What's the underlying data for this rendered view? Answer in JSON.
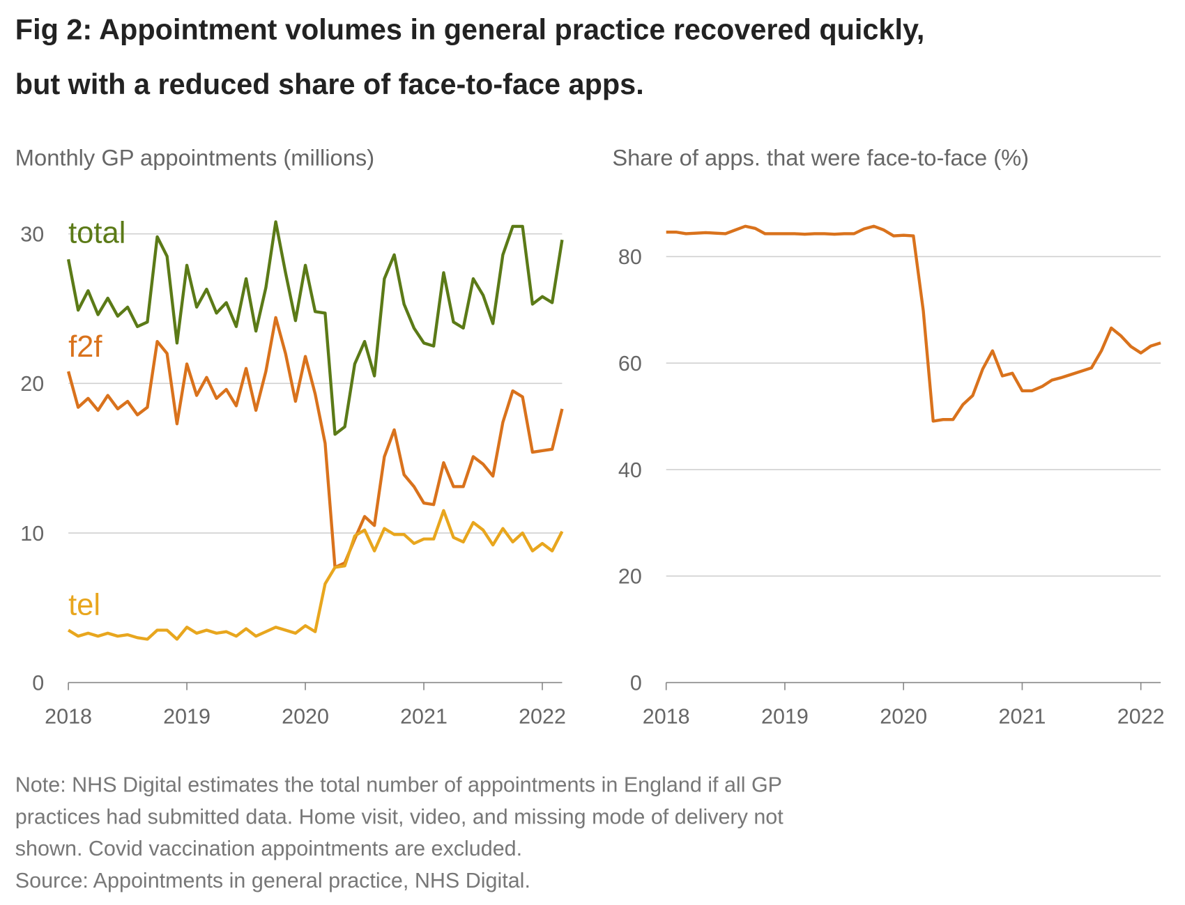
{
  "title": [
    "Fig 2: Appointment volumes in general practice recovered quickly,",
    "but with a reduced share of face-to-face apps."
  ],
  "notes": [
    "Note: NHS Digital estimates the total number of appointments in England if all GP",
    "practices had submitted data. Home visit, video, and missing mode of delivery not",
    "shown. Covid vaccination appointments are excluded.",
    "Source: Appointments in general practice, NHS Digital."
  ],
  "chart_data": [
    {
      "type": "line",
      "subtitle": "Monthly GP appointments (millions)",
      "x": [
        2018,
        2018.083,
        2018.167,
        2018.25,
        2018.333,
        2018.417,
        2018.5,
        2018.583,
        2018.667,
        2018.75,
        2018.833,
        2018.917,
        2019,
        2019.083,
        2019.167,
        2019.25,
        2019.333,
        2019.417,
        2019.5,
        2019.583,
        2019.667,
        2019.75,
        2019.833,
        2019.917,
        2020,
        2020.083,
        2020.167,
        2020.25,
        2020.333,
        2020.417,
        2020.5,
        2020.583,
        2020.667,
        2020.75,
        2020.833,
        2020.917,
        2021,
        2021.083,
        2021.167,
        2021.25,
        2021.333,
        2021.417,
        2021.5,
        2021.583,
        2021.667,
        2021.75,
        2021.833,
        2021.917,
        2022,
        2022.083,
        2022.167
      ],
      "series": [
        {
          "name": "total",
          "color": "#5b7a17",
          "values": [
            28.3,
            24.9,
            26.2,
            24.6,
            25.7,
            24.5,
            25.1,
            23.8,
            24.1,
            29.8,
            28.5,
            22.7,
            27.9,
            25.1,
            26.3,
            24.7,
            25.4,
            23.8,
            27.0,
            23.5,
            26.4,
            30.8,
            27.4,
            24.2,
            27.9,
            24.8,
            24.7,
            16.6,
            17.1,
            21.3,
            22.8,
            20.5,
            27.0,
            28.6,
            25.3,
            23.7,
            22.7,
            22.5,
            27.4,
            24.1,
            23.7,
            27.0,
            25.9,
            24.0,
            28.6,
            30.5,
            30.5,
            25.3,
            25.8,
            25.4,
            29.6
          ]
        },
        {
          "name": "f2f",
          "color": "#d9721c",
          "values": [
            20.8,
            18.4,
            19.0,
            18.2,
            19.2,
            18.3,
            18.8,
            17.9,
            18.4,
            22.8,
            22.0,
            17.3,
            21.3,
            19.2,
            20.4,
            19.0,
            19.6,
            18.5,
            21.0,
            18.2,
            20.8,
            24.4,
            22.0,
            18.8,
            21.8,
            19.3,
            16.0,
            7.7,
            8.0,
            9.6,
            11.1,
            10.5,
            15.1,
            16.9,
            13.9,
            13.1,
            12.0,
            11.9,
            14.7,
            13.1,
            13.1,
            15.1,
            14.6,
            13.8,
            17.4,
            19.5,
            19.1,
            15.4,
            15.5,
            15.6,
            18.3
          ]
        },
        {
          "name": "tel",
          "color": "#e8a61e",
          "values": [
            3.5,
            3.1,
            3.3,
            3.1,
            3.3,
            3.1,
            3.2,
            3.0,
            2.9,
            3.5,
            3.5,
            2.9,
            3.7,
            3.3,
            3.5,
            3.3,
            3.4,
            3.1,
            3.6,
            3.1,
            3.4,
            3.7,
            3.5,
            3.3,
            3.8,
            3.4,
            6.6,
            7.7,
            7.8,
            9.8,
            10.2,
            8.8,
            10.3,
            9.9,
            9.9,
            9.3,
            9.6,
            9.6,
            11.5,
            9.7,
            9.4,
            10.7,
            10.2,
            9.2,
            10.3,
            9.4,
            10.0,
            8.8,
            9.3,
            8.8,
            10.1
          ]
        }
      ],
      "xlim": [
        2018,
        2022.167
      ],
      "xticks": [
        2018,
        2019,
        2020,
        2021,
        2022
      ],
      "ylim": [
        0,
        30
      ],
      "yticks": [
        0,
        10,
        20,
        30
      ],
      "grid": true
    },
    {
      "type": "line",
      "subtitle": "Share of apps. that were face-to-face (%)",
      "x": [
        2018,
        2018.083,
        2018.167,
        2018.25,
        2018.333,
        2018.417,
        2018.5,
        2018.583,
        2018.667,
        2018.75,
        2018.833,
        2018.917,
        2019,
        2019.083,
        2019.167,
        2019.25,
        2019.333,
        2019.417,
        2019.5,
        2019.583,
        2019.667,
        2019.75,
        2019.833,
        2019.917,
        2020,
        2020.083,
        2020.167,
        2020.25,
        2020.333,
        2020.417,
        2020.5,
        2020.583,
        2020.667,
        2020.75,
        2020.833,
        2020.917,
        2021,
        2021.083,
        2021.167,
        2021.25,
        2021.333,
        2021.417,
        2021.5,
        2021.583,
        2021.667,
        2021.75,
        2021.833,
        2021.917,
        2022,
        2022.083,
        2022.167
      ],
      "series": [
        {
          "color": "#d9721c",
          "values": [
            84.6,
            84.6,
            84.3,
            84.4,
            84.5,
            84.4,
            84.3,
            85.0,
            85.7,
            85.3,
            84.3,
            84.3,
            84.3,
            84.3,
            84.2,
            84.3,
            84.3,
            84.2,
            84.3,
            84.3,
            85.2,
            85.7,
            85.0,
            83.9,
            84.0,
            83.9,
            69.8,
            49.1,
            49.4,
            49.4,
            52.2,
            53.9,
            58.9,
            62.3,
            57.6,
            58.1,
            54.8,
            54.8,
            55.6,
            56.8,
            57.3,
            57.9,
            58.5,
            59.1,
            62.3,
            66.6,
            65.1,
            63.1,
            61.9,
            63.2,
            63.8
          ]
        }
      ],
      "xlim": [
        2018,
        2022.167
      ],
      "xticks": [
        2018,
        2019,
        2020,
        2021,
        2022
      ],
      "ylim": [
        0,
        80
      ],
      "yticks": [
        0,
        20,
        40,
        60,
        80
      ],
      "grid": true
    }
  ]
}
